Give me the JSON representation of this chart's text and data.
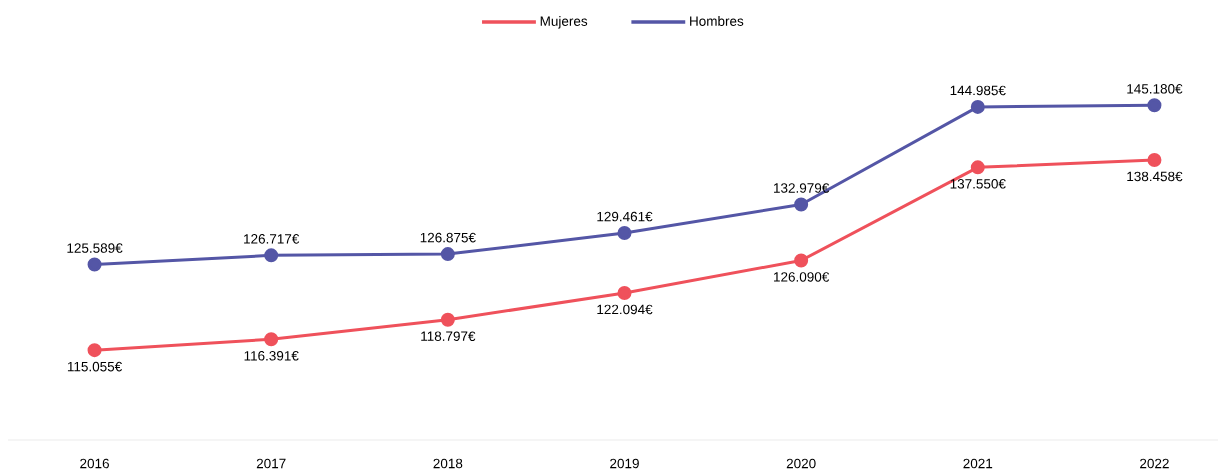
{
  "chart_data": {
    "type": "line",
    "categories": [
      "2016",
      "2017",
      "2018",
      "2019",
      "2020",
      "2021",
      "2022"
    ],
    "series": [
      {
        "name": "Mujeres",
        "color": "#ef515b",
        "values": [
          115055,
          116391,
          118797,
          122094,
          126090,
          137550,
          138458
        ],
        "value_labels": [
          "115.055€",
          "116.391€",
          "118.797€",
          "122.094€",
          "126.090€",
          "137.550€",
          "138.458€"
        ]
      },
      {
        "name": "Hombres",
        "color": "#5456a6",
        "values": [
          125589,
          126717,
          126875,
          129461,
          132979,
          144985,
          145180
        ],
        "value_labels": [
          "125.589€",
          "126.717€",
          "126.875€",
          "129.461€",
          "132.979€",
          "144.985€",
          "145.180€"
        ]
      }
    ],
    "legend": "top",
    "marker": "circle",
    "line_style": "solid",
    "grid": false,
    "tick_labels": "x"
  }
}
